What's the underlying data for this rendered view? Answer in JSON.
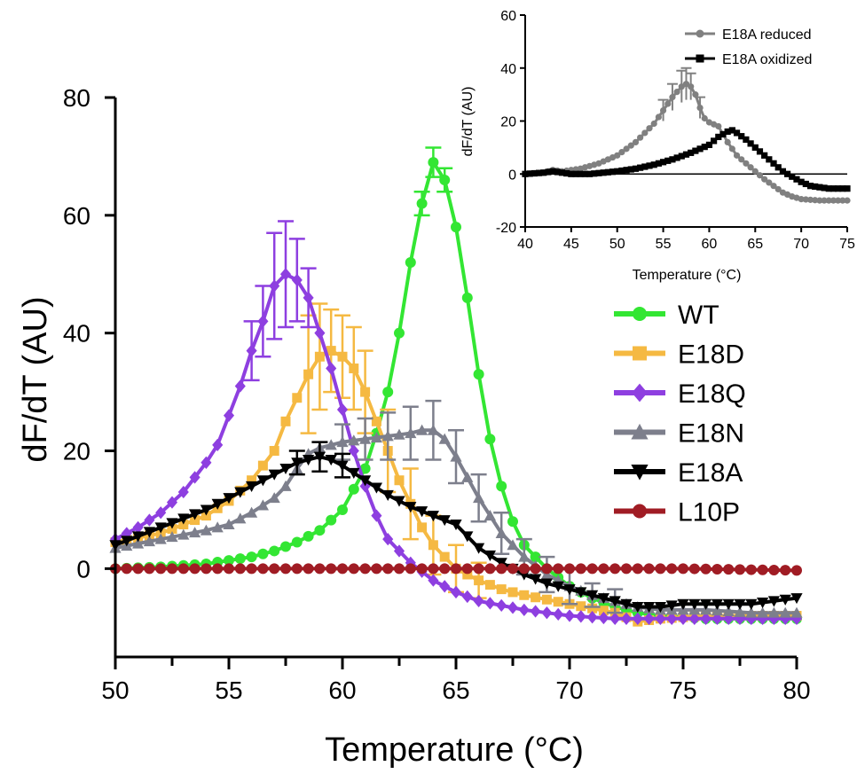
{
  "chart_data": [
    {
      "type": "line",
      "xlabel": "Temperature (°C)",
      "ylabel": "dF/dT (AU)",
      "xlim": [
        50,
        80
      ],
      "ylim": [
        -15,
        80
      ],
      "x_ticks": [
        50,
        55,
        60,
        65,
        70,
        75,
        80
      ],
      "y_ticks": [
        0,
        20,
        40,
        60,
        80
      ],
      "grid": false,
      "legend_position": "right",
      "series": [
        {
          "name": "WT",
          "color": "#33e633",
          "marker": "circle",
          "points": [
            [
              50,
              0
            ],
            [
              52,
              0.3
            ],
            [
              54,
              0.8
            ],
            [
              56,
              2
            ],
            [
              57,
              3
            ],
            [
              58,
              4.5
            ],
            [
              59,
              6.5
            ],
            [
              60,
              10
            ],
            [
              61,
              17
            ],
            [
              61.5,
              23
            ],
            [
              62,
              30
            ],
            [
              62.5,
              40
            ],
            [
              63,
              52
            ],
            [
              63.5,
              62
            ],
            [
              64,
              69
            ],
            [
              64.5,
              66
            ],
            [
              65,
              58
            ],
            [
              65.5,
              46
            ],
            [
              66,
              33
            ],
            [
              66.5,
              22
            ],
            [
              67,
              14
            ],
            [
              67.5,
              8
            ],
            [
              68,
              4
            ],
            [
              69,
              0
            ],
            [
              70,
              -3
            ],
            [
              71,
              -5
            ],
            [
              72,
              -6.5
            ],
            [
              73,
              -7.5
            ],
            [
              74,
              -8
            ],
            [
              76,
              -8.5
            ],
            [
              78,
              -8.5
            ],
            [
              80,
              -8.5
            ]
          ],
          "err": [
            [
              64,
              2.5
            ],
            [
              64.5,
              2
            ],
            [
              63.5,
              2
            ]
          ]
        },
        {
          "name": "E18D",
          "color": "#f5b942",
          "marker": "square",
          "points": [
            [
              50,
              4.5
            ],
            [
              52,
              6
            ],
            [
              54,
              9
            ],
            [
              55,
              11.5
            ],
            [
              56,
              15
            ],
            [
              57,
              20
            ],
            [
              57.5,
              25
            ],
            [
              58,
              29
            ],
            [
              58.5,
              33
            ],
            [
              59,
              36
            ],
            [
              59.5,
              37
            ],
            [
              60,
              36
            ],
            [
              60.5,
              34
            ],
            [
              61,
              30
            ],
            [
              61.5,
              25
            ],
            [
              62,
              20
            ],
            [
              62.5,
              15
            ],
            [
              63,
              11
            ],
            [
              63.5,
              7
            ],
            [
              64,
              4
            ],
            [
              65,
              0
            ],
            [
              66,
              -2
            ],
            [
              67,
              -3.5
            ],
            [
              68,
              -4.5
            ],
            [
              70,
              -6
            ],
            [
              72,
              -7.5
            ],
            [
              73,
              -9
            ],
            [
              74,
              -8.5
            ],
            [
              76,
              -8
            ],
            [
              78,
              -8
            ],
            [
              80,
              -8
            ]
          ],
          "err": [
            [
              58.5,
              10
            ],
            [
              59,
              9
            ],
            [
              59.5,
              7
            ],
            [
              60,
              7
            ],
            [
              60.5,
              7
            ],
            [
              61,
              7
            ],
            [
              62,
              7
            ],
            [
              63,
              6
            ],
            [
              64,
              5
            ],
            [
              65,
              4
            ],
            [
              66,
              3
            ]
          ]
        },
        {
          "name": "E18Q",
          "color": "#8e3fe0",
          "marker": "diamond",
          "points": [
            [
              50,
              5
            ],
            [
              51,
              7
            ],
            [
              52,
              9.5
            ],
            [
              53,
              13
            ],
            [
              54,
              18
            ],
            [
              54.5,
              21
            ],
            [
              55,
              26
            ],
            [
              55.5,
              31
            ],
            [
              56,
              37
            ],
            [
              56.5,
              42
            ],
            [
              57,
              48
            ],
            [
              57.5,
              50
            ],
            [
              58,
              49
            ],
            [
              58.5,
              46
            ],
            [
              59,
              40
            ],
            [
              59.5,
              34
            ],
            [
              60,
              27
            ],
            [
              60.5,
              20
            ],
            [
              61,
              14
            ],
            [
              61.5,
              9
            ],
            [
              62,
              5
            ],
            [
              63,
              1
            ],
            [
              64,
              -2
            ],
            [
              65,
              -4
            ],
            [
              66,
              -5.5
            ],
            [
              68,
              -7
            ],
            [
              70,
              -8
            ],
            [
              72,
              -8.5
            ],
            [
              74,
              -8.5
            ],
            [
              76,
              -8.5
            ],
            [
              78,
              -8.5
            ],
            [
              80,
              -8.5
            ]
          ],
          "err": [
            [
              56,
              5
            ],
            [
              56.5,
              6
            ],
            [
              57,
              9
            ],
            [
              57.5,
              9
            ],
            [
              58,
              7
            ],
            [
              58.5,
              5
            ]
          ]
        },
        {
          "name": "E18N",
          "color": "#7d7f8c",
          "marker": "triangle-up",
          "points": [
            [
              50,
              3.5
            ],
            [
              52,
              5
            ],
            [
              54,
              6.5
            ],
            [
              55,
              7.5
            ],
            [
              56,
              9.5
            ],
            [
              57,
              12
            ],
            [
              57.5,
              14
            ],
            [
              58,
              17
            ],
            [
              58.5,
              19.5
            ],
            [
              59,
              20.5
            ],
            [
              60,
              21.5
            ],
            [
              61,
              22
            ],
            [
              62,
              22.5
            ],
            [
              63,
              23
            ],
            [
              63.5,
              23.5
            ],
            [
              64,
              23.5
            ],
            [
              64.5,
              22
            ],
            [
              65,
              19
            ],
            [
              65.5,
              15.5
            ],
            [
              66,
              12
            ],
            [
              66.5,
              9
            ],
            [
              67,
              6
            ],
            [
              68,
              2
            ],
            [
              69,
              -1
            ],
            [
              70,
              -3
            ],
            [
              71,
              -4.5
            ],
            [
              72,
              -5.5
            ],
            [
              73,
              -6.5
            ],
            [
              74,
              -7
            ],
            [
              76,
              -7
            ],
            [
              78,
              -7.5
            ],
            [
              80,
              -7.5
            ]
          ],
          "err": [
            [
              60,
              3
            ],
            [
              61,
              3.5
            ],
            [
              62,
              4
            ],
            [
              63,
              4.5
            ],
            [
              64,
              5
            ],
            [
              65,
              4.5
            ],
            [
              66,
              4
            ],
            [
              67,
              3.5
            ],
            [
              68,
              3
            ],
            [
              69,
              3
            ],
            [
              70,
              3
            ],
            [
              71,
              2
            ],
            [
              72,
              2
            ]
          ]
        },
        {
          "name": "E18A",
          "color": "#000000",
          "marker": "triangle-down",
          "points": [
            [
              50,
              4
            ],
            [
              51,
              5.5
            ],
            [
              52,
              7
            ],
            [
              53,
              8.5
            ],
            [
              54,
              10
            ],
            [
              55,
              12
            ],
            [
              56,
              14
            ],
            [
              57,
              16
            ],
            [
              58,
              18
            ],
            [
              59,
              19
            ],
            [
              59.5,
              18.5
            ],
            [
              60,
              17.5
            ],
            [
              61,
              15
            ],
            [
              62,
              12.5
            ],
            [
              63,
              10.5
            ],
            [
              64,
              9
            ],
            [
              65,
              7.5
            ],
            [
              65.5,
              5.5
            ],
            [
              66,
              3.5
            ],
            [
              67,
              1
            ],
            [
              68,
              -1
            ],
            [
              69,
              -2.5
            ],
            [
              70,
              -3.5
            ],
            [
              71,
              -4.5
            ],
            [
              72,
              -5.5
            ],
            [
              73,
              -6.5
            ],
            [
              74,
              -6.5
            ],
            [
              75,
              -6
            ],
            [
              76,
              -6
            ],
            [
              77,
              -6
            ],
            [
              78,
              -6
            ],
            [
              79,
              -5.5
            ],
            [
              80,
              -5
            ]
          ],
          "err": [
            [
              58,
              2
            ],
            [
              59,
              2.5
            ],
            [
              60,
              2
            ]
          ]
        },
        {
          "name": "L10P",
          "color": "#a01c24",
          "marker": "circle",
          "points": [
            [
              50,
              0
            ],
            [
              55,
              0
            ],
            [
              60,
              0
            ],
            [
              65,
              0
            ],
            [
              70,
              0
            ],
            [
              75,
              0
            ],
            [
              80,
              -0.3
            ]
          ],
          "err": []
        }
      ]
    },
    {
      "type": "line",
      "xlabel": "Temperature (°C)",
      "ylabel": "dF/dT (AU)",
      "xlim": [
        40,
        75
      ],
      "ylim": [
        -20,
        60
      ],
      "x_ticks": [
        40,
        45,
        50,
        55,
        60,
        65,
        70,
        75
      ],
      "y_ticks": [
        -20,
        0,
        20,
        40,
        60
      ],
      "zero_line": true,
      "grid": false,
      "legend_position": "top-right",
      "series": [
        {
          "name": "E18A reduced",
          "color": "#808080",
          "marker": "circle",
          "points": [
            [
              40,
              0
            ],
            [
              42,
              0.5
            ],
            [
              43,
              1.5
            ],
            [
              44,
              1
            ],
            [
              46,
              2
            ],
            [
              48,
              4
            ],
            [
              50,
              7
            ],
            [
              52,
              12
            ],
            [
              54,
              19
            ],
            [
              55,
              24
            ],
            [
              56,
              29
            ],
            [
              57,
              33
            ],
            [
              57.5,
              34
            ],
            [
              58,
              33
            ],
            [
              58.5,
              30
            ],
            [
              59,
              25
            ],
            [
              59.5,
              21
            ],
            [
              60,
              19.5
            ],
            [
              61,
              18
            ],
            [
              62,
              12
            ],
            [
              63,
              7
            ],
            [
              64,
              4
            ],
            [
              65,
              1
            ],
            [
              66,
              -2
            ],
            [
              67,
              -4.5
            ],
            [
              68,
              -7
            ],
            [
              69,
              -8.5
            ],
            [
              70,
              -9.5
            ],
            [
              72,
              -10
            ],
            [
              75,
              -10
            ]
          ],
          "err": [
            [
              55,
              4
            ],
            [
              56,
              5
            ],
            [
              57,
              6
            ],
            [
              57.5,
              6
            ],
            [
              58,
              5
            ],
            [
              59,
              4
            ]
          ]
        },
        {
          "name": "E18A oxidized",
          "color": "#000000",
          "marker": "square",
          "points": [
            [
              40,
              0
            ],
            [
              42,
              0.5
            ],
            [
              43,
              1
            ],
            [
              45,
              0
            ],
            [
              47,
              0
            ],
            [
              50,
              1
            ],
            [
              52,
              2
            ],
            [
              54,
              3.5
            ],
            [
              56,
              5.5
            ],
            [
              58,
              8
            ],
            [
              59,
              9.5
            ],
            [
              60,
              11
            ],
            [
              61,
              14
            ],
            [
              62,
              16
            ],
            [
              62.5,
              16.5
            ],
            [
              63,
              15.5
            ],
            [
              64,
              13
            ],
            [
              65,
              10
            ],
            [
              66,
              7
            ],
            [
              67,
              4
            ],
            [
              68,
              1
            ],
            [
              69,
              -1
            ],
            [
              70,
              -3
            ],
            [
              71,
              -4.5
            ],
            [
              72,
              -5
            ],
            [
              73,
              -5.5
            ],
            [
              75,
              -5.5
            ]
          ],
          "err": []
        }
      ]
    }
  ]
}
